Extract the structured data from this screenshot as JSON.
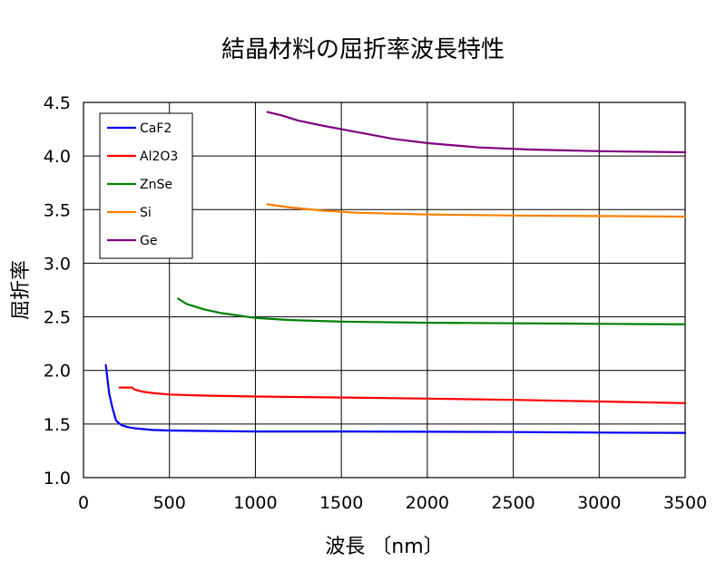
{
  "chart_data": {
    "type": "line",
    "title": "結晶材料の屈折率波長特性",
    "xlabel": "波長 〔nm〕",
    "ylabel": "屈折率",
    "xlim": [
      0,
      3500
    ],
    "ylim": [
      1.0,
      4.5
    ],
    "xticks": [
      0,
      500,
      1000,
      1500,
      2000,
      2500,
      3000,
      3500
    ],
    "xtick_labels": [
      "0",
      "500",
      "1000",
      "1500",
      "2000",
      "2500",
      "3000",
      "3500"
    ],
    "yticks": [
      1.0,
      1.5,
      2.0,
      2.5,
      3.0,
      3.5,
      4.0,
      4.5
    ],
    "ytick_labels": [
      "1.0",
      "1.5",
      "2.0",
      "2.5",
      "3.0",
      "3.5",
      "4.0",
      "4.5"
    ],
    "grid": true,
    "legend_position": "top-left",
    "series": [
      {
        "name": "CaF2",
        "color": "#0000ff",
        "x": [
          130,
          150,
          170,
          190,
          220,
          260,
          300,
          400,
          500,
          700,
          1000,
          1500,
          2000,
          2500,
          3000,
          3500
        ],
        "y": [
          2.05,
          1.78,
          1.64,
          1.53,
          1.49,
          1.47,
          1.46,
          1.445,
          1.44,
          1.435,
          1.43,
          1.43,
          1.428,
          1.425,
          1.42,
          1.418
        ]
      },
      {
        "name": "Al2O3",
        "color": "#ff0000",
        "x": [
          210,
          250,
          280,
          300,
          350,
          400,
          500,
          700,
          1000,
          1500,
          2000,
          2500,
          3000,
          3500
        ],
        "y": [
          1.84,
          1.84,
          1.84,
          1.82,
          1.8,
          1.79,
          1.775,
          1.765,
          1.757,
          1.747,
          1.737,
          1.725,
          1.71,
          1.695
        ]
      },
      {
        "name": "ZnSe",
        "color": "#008000",
        "x": [
          550,
          600,
          700,
          800,
          1000,
          1200,
          1500,
          2000,
          2500,
          3000,
          3500
        ],
        "y": [
          2.67,
          2.62,
          2.57,
          2.535,
          2.49,
          2.47,
          2.455,
          2.445,
          2.44,
          2.435,
          2.43
        ]
      },
      {
        "name": "Si",
        "color": "#ff8000",
        "x": [
          1070,
          1200,
          1400,
          1600,
          2000,
          2500,
          3000,
          3500
        ],
        "y": [
          3.55,
          3.52,
          3.49,
          3.47,
          3.455,
          3.445,
          3.44,
          3.435
        ]
      },
      {
        "name": "Ge",
        "color": "#800080",
        "x": [
          1070,
          1150,
          1250,
          1400,
          1600,
          1800,
          2000,
          2300,
          2600,
          3000,
          3500
        ],
        "y": [
          4.41,
          4.38,
          4.33,
          4.28,
          4.22,
          4.16,
          4.12,
          4.08,
          4.06,
          4.045,
          4.035
        ]
      }
    ]
  }
}
